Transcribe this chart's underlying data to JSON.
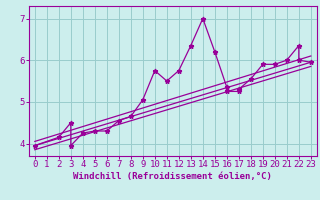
{
  "xlabel": "Windchill (Refroidissement éolien,°C)",
  "background_color": "#cceeed",
  "grid_color": "#99cccc",
  "line_color": "#990099",
  "xlim": [
    -0.5,
    23.5
  ],
  "ylim": [
    3.7,
    7.3
  ],
  "xticks": [
    0,
    1,
    2,
    3,
    4,
    5,
    6,
    7,
    8,
    9,
    10,
    11,
    12,
    13,
    14,
    15,
    16,
    17,
    18,
    19,
    20,
    21,
    22,
    23
  ],
  "yticks": [
    4,
    5,
    6,
    7
  ],
  "scatter_x": [
    0,
    2,
    3,
    3,
    4,
    5,
    6,
    7,
    8,
    9,
    10,
    11,
    12,
    13,
    14,
    15,
    16,
    16,
    17,
    17,
    18,
    19,
    20,
    21,
    22,
    22,
    23
  ],
  "scatter_y": [
    3.95,
    4.15,
    4.5,
    3.95,
    4.25,
    4.3,
    4.3,
    4.55,
    4.65,
    5.05,
    5.75,
    5.5,
    5.75,
    6.35,
    7.0,
    6.2,
    5.35,
    5.25,
    5.25,
    5.3,
    5.55,
    5.9,
    5.9,
    6.0,
    6.35,
    6.0,
    5.95
  ],
  "reg_line1_x": [
    0,
    23
  ],
  "reg_line1_y": [
    3.95,
    5.95
  ],
  "reg_line2_x": [
    0,
    23
  ],
  "reg_line2_y": [
    4.05,
    6.1
  ],
  "reg_line3_x": [
    0,
    23
  ],
  "reg_line3_y": [
    3.85,
    5.85
  ],
  "xlabel_fontsize": 6.5,
  "tick_fontsize": 6.5
}
